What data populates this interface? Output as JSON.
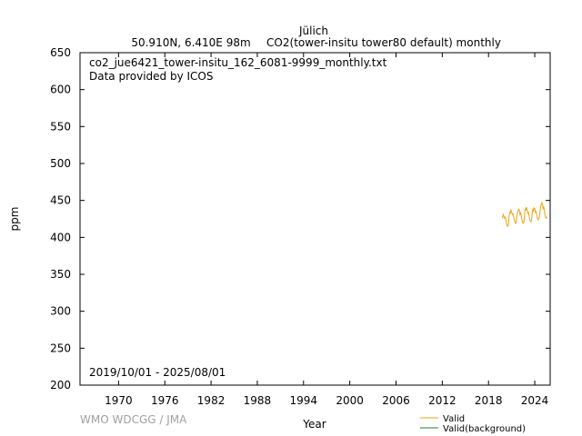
{
  "chart_data": {
    "type": "line",
    "title": "Jülich",
    "subtitle_left": "50.910N, 6.410E 98m",
    "subtitle_right": "CO2(tower-insitu tower80 default) monthly",
    "file_name": "co2_jue6421_tower-insitu_162_6081-9999_monthly.txt",
    "provider": "Data provided by ICOS",
    "date_range": "2019/10/01 - 2025/08/01",
    "xlabel": "Year",
    "ylabel": "ppm",
    "credit": "WMO WDCGG / JMA",
    "xlim": [
      1965,
      2026
    ],
    "ylim": [
      200,
      650
    ],
    "x_ticks": [
      1970,
      1976,
      1982,
      1988,
      1994,
      2000,
      2006,
      2012,
      2018,
      2024
    ],
    "y_ticks": [
      200,
      250,
      300,
      350,
      400,
      450,
      500,
      550,
      600,
      650
    ],
    "grid": false,
    "legend_position": "bottom-right",
    "series": [
      {
        "name": "Valid",
        "color": "#e8a317",
        "x": [
          "2019-10",
          "2019-11",
          "2019-12",
          "2020-01",
          "2020-02",
          "2020-03",
          "2020-04",
          "2020-05",
          "2020-06",
          "2020-07",
          "2020-08",
          "2020-09",
          "2020-10",
          "2020-11",
          "2020-12",
          "2021-01",
          "2021-02",
          "2021-03",
          "2021-04",
          "2021-05",
          "2021-06",
          "2021-07",
          "2021-08",
          "2021-09",
          "2021-10",
          "2021-11",
          "2021-12",
          "2022-01",
          "2022-02",
          "2022-03",
          "2022-04",
          "2022-05",
          "2022-06",
          "2022-07",
          "2022-08",
          "2022-09",
          "2022-10",
          "2022-11",
          "2022-12",
          "2023-01",
          "2023-02",
          "2023-03",
          "2023-04",
          "2023-05",
          "2023-06",
          "2023-07",
          "2023-08",
          "2023-09",
          "2023-10",
          "2023-11",
          "2023-12",
          "2024-01",
          "2024-02",
          "2024-03",
          "2024-04",
          "2024-05",
          "2024-06",
          "2024-07",
          "2024-08",
          "2024-09",
          "2024-10",
          "2024-11",
          "2024-12",
          "2025-01",
          "2025-02",
          "2025-03",
          "2025-04",
          "2025-05",
          "2025-06",
          "2025-07",
          "2025-08"
        ],
        "values": [
          428,
          427,
          431,
          429,
          426,
          427,
          424,
          419,
          416,
          415,
          417,
          428,
          434,
          433,
          437,
          435,
          431,
          432,
          428,
          424,
          421,
          419,
          420,
          429,
          434,
          436,
          438,
          437,
          431,
          433,
          429,
          424,
          420,
          419,
          421,
          430,
          438,
          437,
          441,
          438,
          433,
          434,
          430,
          425,
          422,
          421,
          423,
          432,
          438,
          436,
          440,
          439,
          434,
          435,
          431,
          426,
          424,
          425,
          427,
          433,
          441,
          444,
          447,
          445,
          439,
          441,
          436,
          430,
          427,
          426,
          428
        ]
      },
      {
        "name": "Valid(background)",
        "color": "#2e7d32",
        "x": [],
        "values": []
      }
    ]
  }
}
